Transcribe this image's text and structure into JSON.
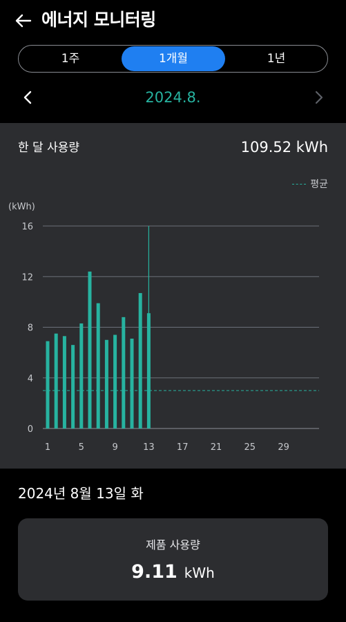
{
  "header": {
    "title": "에너지 모니터링",
    "back_icon": "back-arrow-icon"
  },
  "period_tabs": {
    "items": [
      "1주",
      "1개월",
      "1년"
    ],
    "selected": "1개월"
  },
  "month_nav": {
    "label": "2024.8.",
    "prev_icon": "chevron-left-icon",
    "next_icon": "chevron-right-icon"
  },
  "summary": {
    "label": "한 달 사용량",
    "value": "109.52 kWh"
  },
  "legend": {
    "label": "평균"
  },
  "colors": {
    "accent": "#27b3a0",
    "selected_tab": "#1f7ff1",
    "panel": "#2c2d30",
    "grid": "#6b7079"
  },
  "chart_data": {
    "type": "bar",
    "ylabel": "(kWh)",
    "ylim": [
      0,
      16
    ],
    "yticks": [
      0,
      4,
      8,
      12,
      16
    ],
    "xticks": [
      1,
      5,
      9,
      13,
      17,
      21,
      25,
      29
    ],
    "x": [
      1,
      2,
      3,
      4,
      5,
      6,
      7,
      8,
      9,
      10,
      11,
      12,
      13
    ],
    "values": [
      6.9,
      7.5,
      7.3,
      6.6,
      8.3,
      12.4,
      9.9,
      7.0,
      7.4,
      8.8,
      7.1,
      10.7,
      9.11
    ],
    "average": 3.0,
    "highlight_day": 13,
    "grid": true,
    "legend_position": "top-right"
  },
  "detail": {
    "date": "2024년 8월 13일 화",
    "title": "제품 사용량",
    "value": "9.11",
    "unit": "kWh"
  }
}
